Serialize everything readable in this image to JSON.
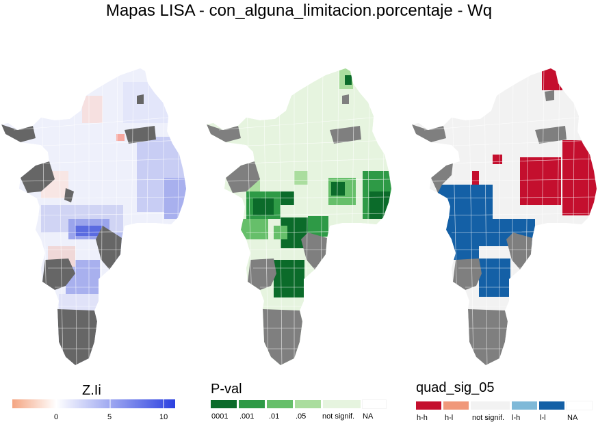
{
  "title": "Mapas LISA - con_alguna_limitacion.porcentaje - Wq",
  "colors": {
    "na": "#7f7f7f",
    "na_dark": "#666666",
    "z_neg": "#f4a582",
    "z_zero": "#ffffff",
    "z_pos": "#2b40e0",
    "p_0001": "#0b6b2a",
    "p_001": "#2e9a46",
    "p_01": "#66bf6a",
    "p_05": "#aadd9e",
    "p_ns": "#e6f4df",
    "q_hh": "#c40f2e",
    "q_hl": "#f0987a",
    "q_ns": "#f2f2f2",
    "q_lh": "#7fb9d8",
    "q_ll": "#1460a6",
    "na_swatch": "#ffffff"
  },
  "legends": {
    "zli": {
      "title": "Z.Ii",
      "ticks": [
        "0",
        "5",
        "10"
      ]
    },
    "pval": {
      "title": "P-val",
      "labels": [
        "0001",
        ".001",
        ".01",
        ".05",
        "not signif.",
        "NA"
      ]
    },
    "quad": {
      "title": "quad_sig_05",
      "labels": [
        "h-h",
        "h-l",
        "not signif.",
        "l-h",
        "l-l",
        "NA"
      ]
    }
  }
}
